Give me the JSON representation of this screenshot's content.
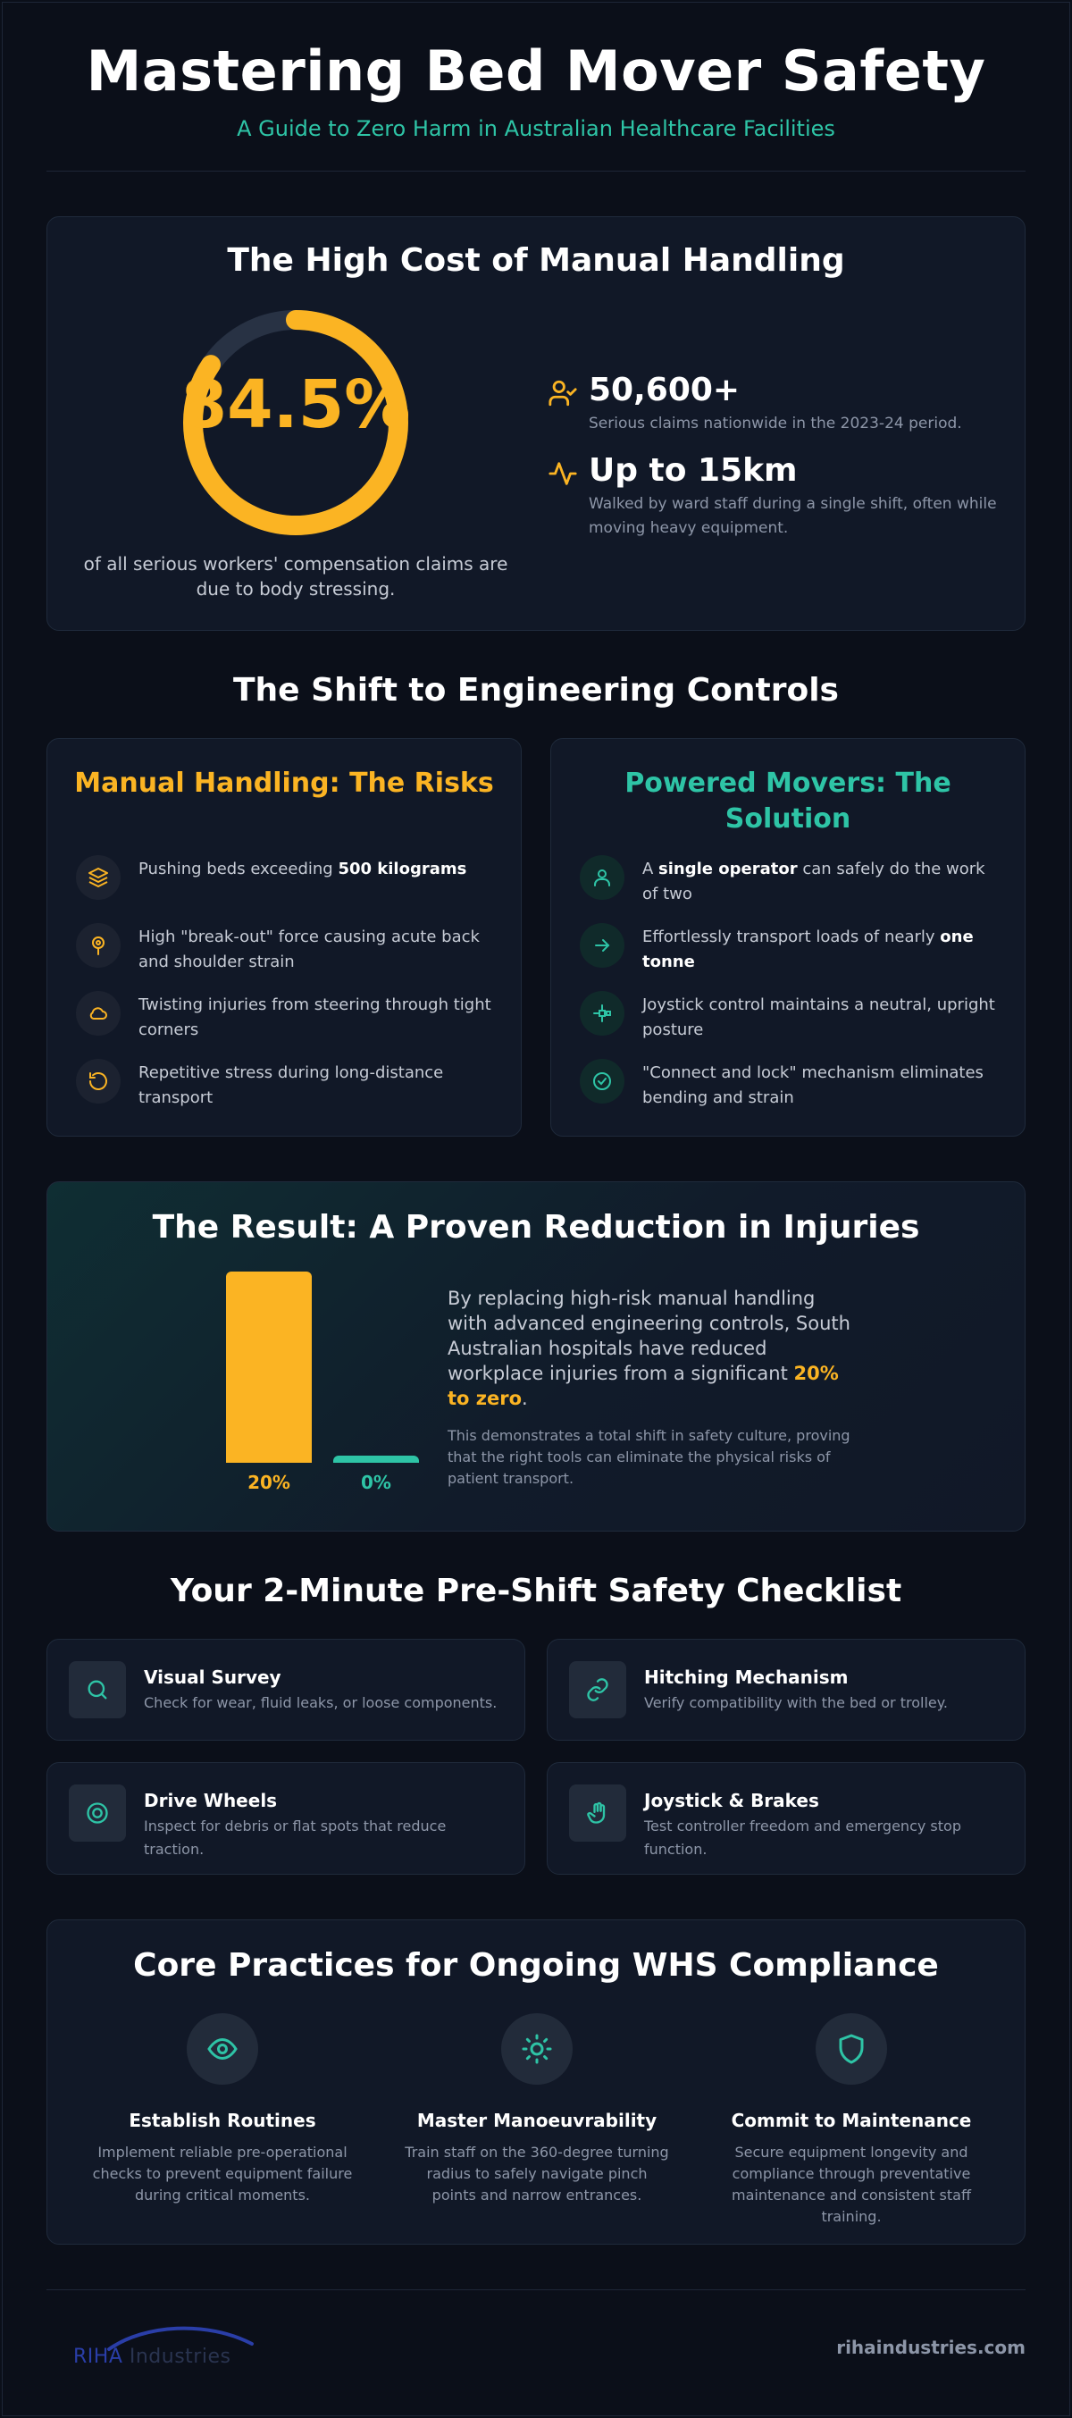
{
  "header": {
    "title": "Mastering Bed Mover Safety",
    "subtitle": "A Guide to Zero Harm in Australian Healthcare Facilities"
  },
  "cost": {
    "title": "The High Cost of Manual Handling",
    "donut_value": "84.5%",
    "donut_fraction": 0.845,
    "caption": "of all serious workers' compensation claims are due to body stressing.",
    "stats": [
      {
        "icon": "user-check-icon",
        "value": "50,600+",
        "desc": "Serious claims nationwide in the 2023-24 period."
      },
      {
        "icon": "activity-icon",
        "value": "Up to 15km",
        "desc": "Walked by ward staff during a single shift, often while moving heavy equipment."
      }
    ]
  },
  "shift": {
    "title": "The Shift to Engineering Controls",
    "manual": {
      "title": "Manual Handling: The Risks",
      "items": [
        {
          "icon": "layers-icon",
          "pre": "Pushing beds exceeding ",
          "bold": "500 kilograms",
          "post": ""
        },
        {
          "icon": "pin-icon",
          "pre": "High \"break-out\" force causing acute back and shoulder strain",
          "bold": "",
          "post": ""
        },
        {
          "icon": "cloud-icon",
          "pre": "Twisting injuries from steering through tight corners",
          "bold": "",
          "post": ""
        },
        {
          "icon": "rotate-icon",
          "pre": "Repetitive stress during long-distance transport",
          "bold": "",
          "post": ""
        }
      ]
    },
    "powered": {
      "title": "Powered Movers: The Solution",
      "items": [
        {
          "icon": "user-icon",
          "pre": "A ",
          "bold": "single operator",
          "post": " can safely do the work of two"
        },
        {
          "icon": "arrow-right-icon",
          "pre": "Effortlessly transport loads of nearly ",
          "bold": "one tonne",
          "post": ""
        },
        {
          "icon": "joystick-icon",
          "pre": "Joystick control maintains a neutral, upright posture",
          "bold": "",
          "post": ""
        },
        {
          "icon": "check-circle-icon",
          "pre": "\"Connect and lock\" mechanism eliminates bending and strain",
          "bold": "",
          "post": ""
        }
      ]
    }
  },
  "result": {
    "title": "The Result: A Proven Reduction in Injuries",
    "main_pre": "By replacing high-risk manual handling with advanced engineering controls, South Australian hospitals have reduced workplace injuries from a significant ",
    "main_highlight": "20% to zero",
    "main_post": ".",
    "sub": "This demonstrates a total shift in safety culture, proving that the right tools can eliminate the physical risks of patient transport.",
    "colors": {
      "before": "#fbb423",
      "after": "#2ec4a6"
    }
  },
  "chart_data": {
    "type": "bar",
    "categories": [
      "",
      ""
    ],
    "values": [
      20,
      0
    ],
    "value_labels": [
      "20%",
      "0%"
    ],
    "ylim": [
      0,
      20
    ]
  },
  "checklist": {
    "title": "Your 2-Minute Pre-Shift Safety Checklist",
    "items": [
      {
        "icon": "search-icon",
        "title": "Visual Survey",
        "desc": "Check for wear, fluid leaks, or loose components."
      },
      {
        "icon": "link-icon",
        "title": "Hitching Mechanism",
        "desc": "Verify compatibility with the bed or trolley."
      },
      {
        "icon": "target-icon",
        "title": "Drive Wheels",
        "desc": "Inspect for debris or flat spots that reduce traction."
      },
      {
        "icon": "hand-icon",
        "title": "Joystick & Brakes",
        "desc": "Test controller freedom and emergency stop function."
      }
    ]
  },
  "core": {
    "title": "Core Practices for Ongoing WHS Compliance",
    "items": [
      {
        "icon": "eye-icon",
        "title": "Establish Routines",
        "desc": "Implement reliable pre-operational checks to prevent equipment failure during critical moments."
      },
      {
        "icon": "sun-icon",
        "title": "Master Manoeuvrability",
        "desc": "Train staff on the 360-degree turning radius to safely navigate pinch points and narrow entrances."
      },
      {
        "icon": "shield-icon",
        "title": "Commit to Maintenance",
        "desc": "Secure equipment longevity and compliance through preventative maintenance and consistent staff training."
      }
    ]
  },
  "footer": {
    "logo_primary": "RIHA",
    "logo_secondary": " Industries",
    "url": "rihaindustries.com"
  }
}
